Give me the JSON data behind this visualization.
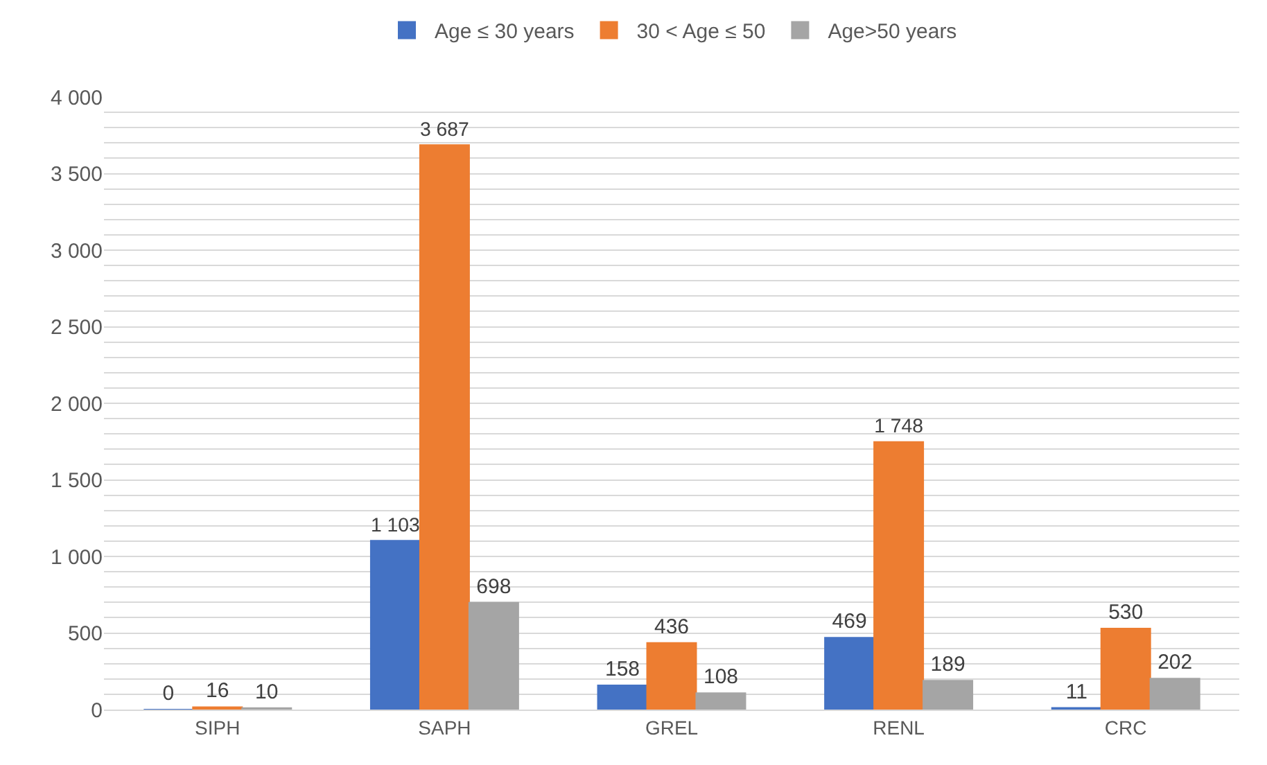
{
  "chart_data": {
    "type": "bar",
    "categories": [
      "SIPH",
      "SAPH",
      "GREL",
      "RENL",
      "CRC"
    ],
    "series": [
      {
        "name": "Age ≤ 30 years",
        "color": "#4472c4",
        "values": [
          0,
          1103,
          158,
          469,
          11
        ],
        "value_labels": [
          "0",
          "1 103",
          "158",
          "469",
          "11"
        ]
      },
      {
        "name": "30 < Age ≤ 50",
        "color": "#ed7d31",
        "values": [
          16,
          3687,
          436,
          1748,
          530
        ],
        "value_labels": [
          "16",
          "3 687",
          "436",
          "1 748",
          "530"
        ]
      },
      {
        "name": "Age>50 years",
        "color": "#a5a5a5",
        "values": [
          10,
          698,
          108,
          189,
          202
        ],
        "value_labels": [
          "10",
          "698",
          "108",
          "189",
          "202"
        ]
      }
    ],
    "ylim": [
      0,
      4000
    ],
    "yticks": [
      {
        "value": 0,
        "label": "0"
      },
      {
        "value": 100,
        "label": null
      },
      {
        "value": 200,
        "label": null
      },
      {
        "value": 300,
        "label": null
      },
      {
        "value": 400,
        "label": null
      },
      {
        "value": 500,
        "label": "500"
      },
      {
        "value": 600,
        "label": null
      },
      {
        "value": 700,
        "label": null
      },
      {
        "value": 800,
        "label": null
      },
      {
        "value": 900,
        "label": null
      },
      {
        "value": 1000,
        "label": "1 000"
      },
      {
        "value": 1100,
        "label": null
      },
      {
        "value": 1200,
        "label": null
      },
      {
        "value": 1300,
        "label": null
      },
      {
        "value": 1400,
        "label": null
      },
      {
        "value": 1500,
        "label": "1 500"
      },
      {
        "value": 1600,
        "label": null
      },
      {
        "value": 1700,
        "label": null
      },
      {
        "value": 1800,
        "label": null
      },
      {
        "value": 1900,
        "label": null
      },
      {
        "value": 2000,
        "label": "2 000"
      },
      {
        "value": 2100,
        "label": null
      },
      {
        "value": 2200,
        "label": null
      },
      {
        "value": 2300,
        "label": null
      },
      {
        "value": 2400,
        "label": null
      },
      {
        "value": 2500,
        "label": "2 500"
      },
      {
        "value": 2600,
        "label": null
      },
      {
        "value": 2700,
        "label": null
      },
      {
        "value": 2800,
        "label": null
      },
      {
        "value": 2900,
        "label": null
      },
      {
        "value": 3000,
        "label": "3 000"
      },
      {
        "value": 3100,
        "label": null
      },
      {
        "value": 3200,
        "label": null
      },
      {
        "value": 3300,
        "label": null
      },
      {
        "value": 3400,
        "label": null
      },
      {
        "value": 3500,
        "label": "3 500"
      },
      {
        "value": 3600,
        "label": null
      },
      {
        "value": 3700,
        "label": null
      },
      {
        "value": 3800,
        "label": null
      },
      {
        "value": 3900,
        "label": null
      },
      {
        "value": 4000,
        "label": "4 000"
      }
    ],
    "grid": "y",
    "legend": "top"
  }
}
